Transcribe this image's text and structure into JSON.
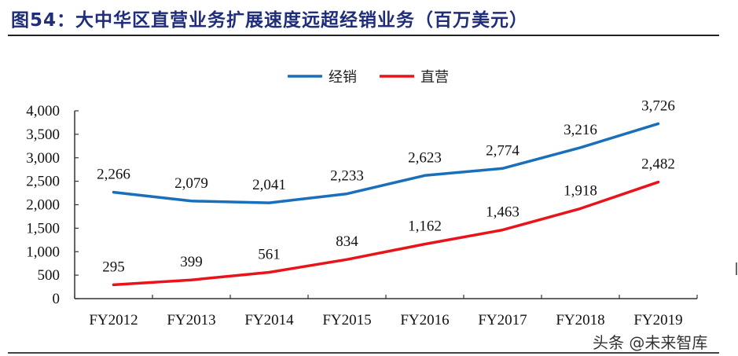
{
  "title": "图54：大中华区直营业务扩展速度远超经销业务（百万美元）",
  "watermark": "头条 @未来智库",
  "legend": [
    {
      "label": "经销",
      "color": "#1a6fba"
    },
    {
      "label": "直营",
      "color": "#e8141a"
    }
  ],
  "chart_data": {
    "type": "line",
    "title": "大中华区直营业务扩展速度远超经销业务（百万美元）",
    "xlabel": "",
    "ylabel": "",
    "categories": [
      "FY2012",
      "FY2013",
      "FY2014",
      "FY2015",
      "FY2016",
      "FY2017",
      "FY2018",
      "FY2019"
    ],
    "series": [
      {
        "name": "经销",
        "color": "#1a6fba",
        "values": [
          2266,
          2079,
          2041,
          2233,
          2623,
          2774,
          3216,
          3726
        ]
      },
      {
        "name": "直营",
        "color": "#e8141a",
        "values": [
          295,
          399,
          561,
          834,
          1162,
          1463,
          1918,
          2482
        ]
      }
    ],
    "ylim": [
      0,
      4000
    ],
    "yticks": [
      0,
      500,
      1000,
      1500,
      2000,
      2500,
      3000,
      3500,
      4000
    ],
    "ytick_labels": [
      "0",
      "500",
      "1,000",
      "1,500",
      "2,000",
      "2,500",
      "3,000",
      "3,500",
      "4,000"
    ],
    "grid": false,
    "legend_position": "top-center",
    "data_labels": {
      "经销": [
        "2,266",
        "2,079",
        "2,041",
        "2,233",
        "2,623",
        "2,774",
        "3,216",
        "3,726"
      ],
      "直营": [
        "295",
        "399",
        "561",
        "834",
        "1,162",
        "1,463",
        "1,918",
        "2,482"
      ]
    }
  }
}
